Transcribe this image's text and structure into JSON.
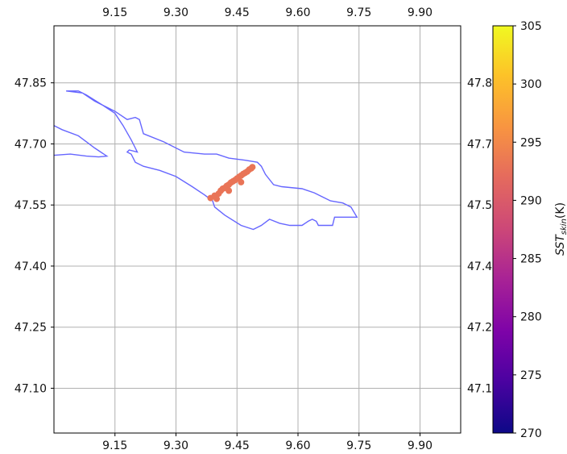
{
  "chart_data": {
    "type": "scatter",
    "title": "",
    "xlabel": "",
    "ylabel": "",
    "xlim": [
      9.0,
      10.0
    ],
    "ylim": [
      46.99,
      47.99
    ],
    "grid": true,
    "x_ticks": [
      "9.15",
      "9.30",
      "9.45",
      "9.60",
      "9.75",
      "9.90"
    ],
    "y_ticks": [
      "47.85",
      "47.70",
      "47.55",
      "47.40",
      "47.25",
      "47.10"
    ],
    "top_x_ticks": [
      "9.15",
      "9.30",
      "9.45",
      "9.60",
      "9.75",
      "9.90"
    ],
    "right_y_ticks": [
      "47.8",
      "47.7",
      "47.5",
      "47.4",
      "47.2",
      "47.1"
    ],
    "coastline_color": "#6666ff",
    "coastline_lon": [
      9.03,
      9.07,
      9.1,
      9.15,
      9.18,
      9.2,
      9.21,
      9.22,
      9.27,
      9.32,
      9.37,
      9.4,
      9.43,
      9.47,
      9.5,
      9.51,
      9.52,
      9.54,
      9.56,
      9.61,
      9.64,
      9.66,
      9.68,
      9.71,
      9.73,
      9.745,
      9.72,
      9.69,
      9.685,
      9.67,
      9.65,
      9.645,
      9.635,
      9.625,
      9.61,
      9.58,
      9.555,
      9.53,
      9.51,
      9.49,
      9.46,
      9.42,
      9.395,
      9.39,
      9.37,
      9.34,
      9.3,
      9.26,
      9.22,
      9.2,
      9.19,
      9.18,
      9.185,
      9.205,
      9.2,
      9.19,
      9.17,
      9.15,
      9.12,
      9.08,
      9.06,
      9.03
    ],
    "coastline_lat": [
      47.83,
      47.825,
      47.805,
      47.78,
      47.76,
      47.765,
      47.76,
      47.725,
      47.705,
      47.68,
      47.675,
      47.675,
      47.665,
      47.66,
      47.655,
      47.645,
      47.625,
      47.6,
      47.595,
      47.59,
      47.58,
      47.57,
      47.56,
      47.555,
      47.545,
      47.52,
      47.52,
      47.52,
      47.5,
      47.5,
      47.5,
      47.51,
      47.515,
      47.51,
      47.5,
      47.5,
      47.505,
      47.515,
      47.5,
      47.49,
      47.5,
      47.525,
      47.545,
      47.56,
      47.575,
      47.595,
      47.62,
      47.635,
      47.645,
      47.655,
      47.675,
      47.68,
      47.685,
      47.68,
      47.69,
      47.71,
      47.745,
      47.775,
      47.795,
      47.82,
      47.83,
      47.83
    ],
    "coastline_west_lon": [
      9.0,
      9.02,
      9.06,
      9.08,
      9.1,
      9.13,
      9.11,
      9.08,
      9.04,
      9.0
    ],
    "coastline_west_lat": [
      47.745,
      47.735,
      47.72,
      47.705,
      47.69,
      47.67,
      47.668,
      47.67,
      47.675,
      47.672
    ],
    "points_lon": [
      9.385,
      9.395,
      9.405,
      9.41,
      9.415,
      9.42,
      9.425,
      9.43,
      9.435,
      9.44,
      9.445,
      9.45,
      9.455,
      9.46,
      9.465,
      9.47,
      9.475,
      9.48,
      9.485,
      9.488,
      9.4,
      9.43,
      9.46
    ],
    "points_lat": [
      47.567,
      47.573,
      47.578,
      47.585,
      47.59,
      47.592,
      47.597,
      47.6,
      47.605,
      47.608,
      47.611,
      47.615,
      47.619,
      47.622,
      47.626,
      47.629,
      47.632,
      47.637,
      47.64,
      47.643,
      47.565,
      47.585,
      47.606
    ],
    "points_value": 293,
    "colorbar": {
      "label": "SST_skin (K)",
      "min": 270,
      "max": 305,
      "ticks": [
        "305",
        "300",
        "295",
        "290",
        "285",
        "280",
        "275",
        "270"
      ],
      "colormap": "plasma"
    }
  }
}
